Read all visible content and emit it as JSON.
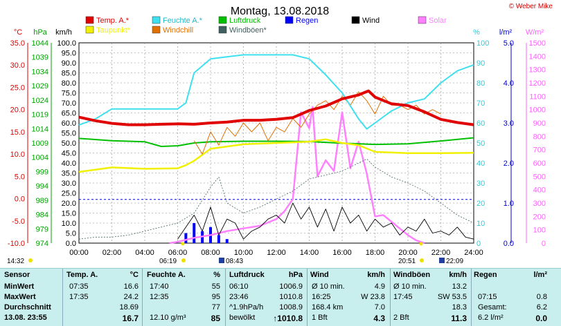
{
  "chart_data": {
    "type": "line",
    "title": "Montag, 13.08.2018",
    "copyright": "© Weber Mike",
    "legend": [
      {
        "name": "Temp. A.*",
        "color": "#e00000"
      },
      {
        "name": "Feuchte A.*",
        "color": "#3ee0f0"
      },
      {
        "name": "Luftdruck",
        "color": "#00c000"
      },
      {
        "name": "Regen",
        "color": "#0000ff"
      },
      {
        "name": "Wind",
        "color": "#000000"
      },
      {
        "name": "Solar",
        "color": "#ff80ff"
      },
      {
        "name": "Taupunkt*",
        "color": "#f0f000"
      },
      {
        "name": "Windchill",
        "color": "#e07000"
      },
      {
        "name": "Windböen*",
        "color": "#406060"
      }
    ],
    "axes": {
      "temp": {
        "unit": "°C",
        "ticks": [
          "35.0",
          "30.0",
          "25.0",
          "20.0",
          "15.0",
          "10.0",
          "5.0",
          "0.0",
          "-5.0",
          "-10.0"
        ],
        "range": [
          -10,
          35
        ]
      },
      "pressure": {
        "unit": "hPa",
        "ticks": [
          "1044",
          "1039",
          "1034",
          "1029",
          "1024",
          "1019",
          "1014",
          "1009",
          "1004",
          "999",
          "994",
          "989",
          "984",
          "979",
          "974"
        ],
        "range": [
          974,
          1044
        ]
      },
      "wind": {
        "unit": "km/h",
        "ticks": [
          "100.0",
          "95.0",
          "90.0",
          "85.0",
          "80.0",
          "75.0",
          "70.0",
          "65.0",
          "60.0",
          "55.0",
          "50.0",
          "45.0",
          "40.0",
          "35.0",
          "30.0",
          "25.0",
          "20.0",
          "15.0",
          "10.0",
          "5.0",
          "0.0"
        ],
        "range": [
          0,
          100
        ]
      },
      "humidity": {
        "unit": "%",
        "ticks": [
          "100",
          "90",
          "80",
          "70",
          "60",
          "50",
          "40",
          "30",
          "20",
          "10",
          "0"
        ],
        "range": [
          0,
          100
        ]
      },
      "rain": {
        "unit": "l/m²",
        "ticks": [
          "5.0",
          "4.0",
          "3.0",
          "2.0",
          "1.0",
          "0.0"
        ],
        "range": [
          0,
          5
        ]
      },
      "solar": {
        "unit": "W/m²",
        "ticks": [
          "1500",
          "1400",
          "1300",
          "1200",
          "1100",
          "1000",
          "900",
          "800",
          "700",
          "600",
          "500",
          "400",
          "300",
          "200",
          "100",
          "0"
        ],
        "range": [
          0,
          1500
        ]
      },
      "x": {
        "ticks": [
          "00:00",
          "02:00",
          "04:00",
          "06:00",
          "08:00",
          "10:00",
          "12:00",
          "14:00",
          "16:00",
          "18:00",
          "20:00",
          "22:00",
          "24:00"
        ],
        "range": [
          0,
          24
        ]
      }
    },
    "markers": {
      "left": "14:32",
      "sunrise": "06:19",
      "moonrise": "08:43",
      "sunset": "20:51",
      "moonset": "22:09"
    },
    "series": [
      {
        "name": "Temp. A.*",
        "x": [
          0,
          1,
          2,
          3,
          4,
          5,
          6,
          7,
          8,
          9,
          10,
          11,
          12,
          13,
          14,
          15,
          16,
          17,
          17.6,
          18,
          19,
          20,
          21,
          22,
          23,
          24
        ],
        "y": [
          18.3,
          17.5,
          16.9,
          16.6,
          16.6,
          16.7,
          16.8,
          16.7,
          17.0,
          17.2,
          17.6,
          17.6,
          17.8,
          18.2,
          19.8,
          20.8,
          22.4,
          23.3,
          24.2,
          22.8,
          21.3,
          20.9,
          19.5,
          17.8,
          17.1,
          16.6
        ]
      },
      {
        "name": "Feuchte A.*",
        "x": [
          0,
          1,
          2,
          3,
          4,
          5,
          6,
          6.5,
          7,
          8,
          9,
          10,
          11,
          12,
          13,
          14,
          15,
          16,
          17,
          17.5,
          18,
          19,
          20,
          21,
          22,
          23,
          24
        ],
        "y": [
          59,
          62,
          67,
          67,
          67,
          67,
          67,
          70,
          85,
          92,
          93,
          94,
          94,
          94,
          94,
          92,
          84,
          75,
          62,
          57,
          60,
          66,
          70,
          72,
          80,
          86,
          89
        ]
      },
      {
        "name": "Taupunkt*",
        "x": [
          0,
          2,
          4,
          6,
          6.5,
          7,
          8,
          10,
          12,
          14,
          15,
          16,
          17,
          18,
          20,
          22,
          24
        ],
        "y": [
          6.0,
          7.0,
          6.7,
          6.8,
          7.5,
          8.5,
          11.2,
          12.2,
          12.5,
          12.8,
          13.3,
          12.5,
          12.0,
          10.5,
          10.2,
          10.2,
          10.3
        ]
      },
      {
        "name": "Luftdruck",
        "x": [
          0,
          2,
          4,
          5,
          6,
          7,
          8,
          10,
          12,
          14,
          16,
          18,
          20,
          22,
          24
        ],
        "y": [
          1010.6,
          1009.8,
          1009.4,
          1007.8,
          1008.0,
          1009.0,
          1009.4,
          1009.6,
          1009.6,
          1009.5,
          1008.9,
          1008.5,
          1008.7,
          1009.7,
          1010.8
        ]
      },
      {
        "name": "Windchill",
        "x": [
          7,
          7.5,
          8,
          8.5,
          9,
          9.5,
          10,
          10.5,
          11,
          11.5,
          12,
          12.5,
          13,
          13.5,
          14,
          14.5,
          15,
          15.5,
          16,
          16.5,
          17,
          17.5,
          18,
          18.5,
          19,
          19.5,
          20,
          20.5,
          21,
          21.5,
          22
        ],
        "y": [
          13,
          10,
          15,
          12,
          16,
          14,
          17,
          15,
          17,
          13,
          16,
          15,
          18,
          16,
          19,
          21,
          22,
          20,
          23,
          21,
          24,
          22,
          19,
          23,
          21,
          21,
          20,
          21,
          19,
          20,
          19
        ]
      },
      {
        "name": "Wind",
        "x": [
          6,
          6.5,
          7,
          7.5,
          8,
          8.5,
          9,
          9.5,
          10,
          10.5,
          11,
          11.5,
          12,
          12.5,
          13,
          13.5,
          14,
          14.5,
          15,
          15.5,
          16,
          16.5,
          17,
          17.5,
          18,
          18.5,
          19,
          19.5,
          20,
          20.5,
          21,
          21.5,
          22,
          22.5,
          23,
          23.5,
          24
        ],
        "y": [
          2,
          8,
          14,
          6,
          18,
          4,
          12,
          10,
          2,
          6,
          8,
          12,
          14,
          10,
          20,
          12,
          18,
          8,
          17,
          6,
          18,
          10,
          14,
          6,
          12,
          8,
          10,
          4,
          8,
          6,
          12,
          5,
          6,
          4,
          8,
          3,
          2
        ]
      },
      {
        "name": "Windböen*",
        "x": [
          0,
          1,
          2,
          3,
          4,
          5,
          6,
          7,
          8,
          8.5,
          9,
          10,
          11,
          12,
          13,
          14,
          15,
          16,
          17,
          17.5,
          18,
          19,
          20,
          21,
          22,
          23,
          24
        ],
        "y": [
          2,
          3,
          3,
          4,
          6,
          8,
          10,
          15,
          28,
          33,
          20,
          15,
          18,
          22,
          26,
          32,
          34,
          36,
          40,
          42,
          38,
          33,
          30,
          26,
          20,
          14,
          10
        ]
      },
      {
        "name": "Solar",
        "x": [
          5.5,
          6,
          7,
          8,
          9,
          10,
          11,
          12,
          12.5,
          13,
          13.5,
          14,
          14.2,
          14.5,
          15,
          15.5,
          16,
          16.5,
          17,
          17.5,
          18,
          18.5,
          19,
          19.5,
          20,
          20.5,
          21
        ],
        "y": [
          0,
          10,
          40,
          60,
          90,
          110,
          130,
          180,
          240,
          330,
          980,
          860,
          1020,
          500,
          620,
          540,
          980,
          560,
          760,
          520,
          200,
          210,
          160,
          110,
          60,
          20,
          0
        ]
      },
      {
        "name": "Regen",
        "x": [
          6.5,
          7,
          7.5,
          8,
          8.5,
          9
        ],
        "y": [
          0.25,
          0.5,
          0.3,
          0.4,
          0.2,
          0.1
        ]
      }
    ]
  },
  "table": {
    "headers": {
      "sensor": "Sensor",
      "temp": "Temp. A.",
      "temp_unit": "°C",
      "hum": "Feuchte A.",
      "hum_unit": "%",
      "press": "Luftdruck",
      "press_unit": "hPa",
      "wind": "Wind",
      "wind_unit": "km/h",
      "gust": "Windböen",
      "gust_unit": "km/h",
      "rain": "Regen",
      "rain_unit": "l/m²"
    },
    "rows": [
      {
        "label": "MinWert",
        "temp_t": "07:35",
        "temp_v": "16.6",
        "hum_t": "17:40",
        "hum_v": "55",
        "press_t": "06:10",
        "press_v": "1006.9",
        "wind_t": "Ø 10 min.",
        "wind_v": "4.9",
        "gust_t": "Ø 10 min.",
        "gust_v": "13.2",
        "rain_t": "",
        "rain_v": ""
      },
      {
        "label": "MaxWert",
        "temp_t": "17:35",
        "temp_v": "24.2",
        "hum_t": "12:35",
        "hum_v": "95",
        "press_t": "23:46",
        "press_v": "1010.8",
        "wind_t": "16:25",
        "wind_v": "W 23.8",
        "gust_t": "17:45",
        "gust_v": "SW 53.5",
        "rain_t": "07:15",
        "rain_v": "0.8"
      },
      {
        "label": "Durchschnitt",
        "temp_t": "",
        "temp_v": "18.69",
        "hum_t": "",
        "hum_v": "77",
        "press_t": "^1.9hPa/h",
        "press_v": "1008.9",
        "wind_t": "168.4 km",
        "wind_v": "7.0",
        "gust_t": "",
        "gust_v": "18.3",
        "rain_t": "Gesamt:",
        "rain_v": "6.2"
      },
      {
        "label": "13.08. 23:55",
        "temp_t": "",
        "temp_v": "16.7",
        "hum_t": "12.10 g/m³",
        "hum_v": "85",
        "press_t": "bewölkt",
        "press_v": "↑1010.8",
        "wind_t": "1 Bft",
        "wind_v": "4.3",
        "gust_t": "2 Bft",
        "gust_v": "11.3",
        "rain_t": "6.2 l/m²",
        "rain_v": "0.0"
      }
    ]
  }
}
